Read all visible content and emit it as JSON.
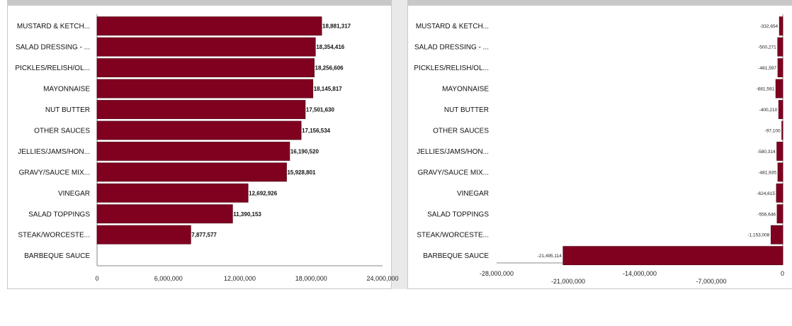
{
  "colors": {
    "bar": "#800020",
    "bar_stroke": "#5a0016",
    "axis": "#888888"
  },
  "chart_data": [
    {
      "type": "bar",
      "orientation": "horizontal",
      "title": "",
      "xlabel": "",
      "ylabel": "",
      "categories": [
        "MUSTARD & KETCH...",
        "SALAD DRESSING - ...",
        "PICKLES/RELISH/OL...",
        "MAYONNAISE",
        "NUT BUTTER",
        "OTHER SAUCES",
        "JELLIES/JAMS/HON...",
        "GRAVY/SAUCE MIX...",
        "VINEGAR",
        "SALAD TOPPINGS",
        "STEAK/WORCESTE...",
        "BARBEQUE SAUCE"
      ],
      "values": [
        18881317,
        18354416,
        18256606,
        18145817,
        17501630,
        17156534,
        16190520,
        15928801,
        12692926,
        11390153,
        7877577,
        null
      ],
      "value_labels": [
        "18,881,317",
        "18,354,416",
        "18,256,606",
        "18,145,817",
        "17,501,630",
        "17,156,534",
        "16,190,520",
        "15,928,801",
        "12,692,926",
        "11,390,153",
        "7,877,577",
        ""
      ],
      "xlim": [
        0,
        24000000
      ],
      "ticks": [
        0,
        6000000,
        12000000,
        18000000,
        24000000
      ],
      "tick_labels": [
        "0",
        "6,000,000",
        "12,000,000",
        "18,000,000",
        "24,000,000"
      ],
      "grid": false,
      "legend": "none"
    },
    {
      "type": "bar",
      "orientation": "horizontal",
      "title": "",
      "xlabel": "",
      "ylabel": "",
      "categories": [
        "MUSTARD & KETCH...",
        "SALAD DRESSING - ...",
        "PICKLES/RELISH/OL...",
        "MAYONNAISE",
        "NUT BUTTER",
        "OTHER SAUCES",
        "JELLIES/JAMS/HON...",
        "GRAVY/SAUCE MIX...",
        "VINEGAR",
        "SALAD TOPPINGS",
        "STEAK/WORCESTE...",
        "BARBEQUE SAUCE"
      ],
      "values": [
        -332654,
        -500271,
        -481597,
        -681591,
        -400210,
        -97100,
        -580314,
        -481935,
        -624615,
        -556646,
        -1153008,
        -21495114
      ],
      "value_labels": [
        "-332,654",
        "-500,271",
        "-481,597",
        "-681,591",
        "-400,210",
        "-97,100",
        "-580,314",
        "-481,935",
        "-624,615",
        "-556,646",
        "-1,153,008",
        "-21,495,114"
      ],
      "xlim": [
        -28000000,
        0
      ],
      "ticks": [
        -28000000,
        -21000000,
        -14000000,
        -7000000,
        0
      ],
      "tick_labels": [
        "-28,000,000",
        "-21,000,000",
        "-14,000,000",
        "-7,000,000",
        "0"
      ],
      "grid": false,
      "legend": "none"
    }
  ]
}
